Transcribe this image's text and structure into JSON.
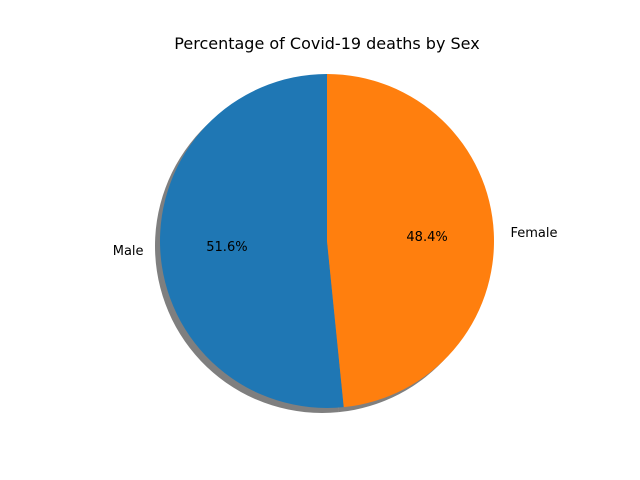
{
  "chart_data": {
    "type": "pie",
    "title": "Percentage of Covid-19 deaths by Sex",
    "labels": [
      "Male",
      "Female"
    ],
    "values": [
      51.6,
      48.4
    ],
    "percent_labels": [
      "51.6%",
      "48.4%"
    ],
    "colors": [
      "#1f77b4",
      "#ff7f0e"
    ],
    "start_angle_deg": 90,
    "counterclockwise": true,
    "shadow": true
  }
}
